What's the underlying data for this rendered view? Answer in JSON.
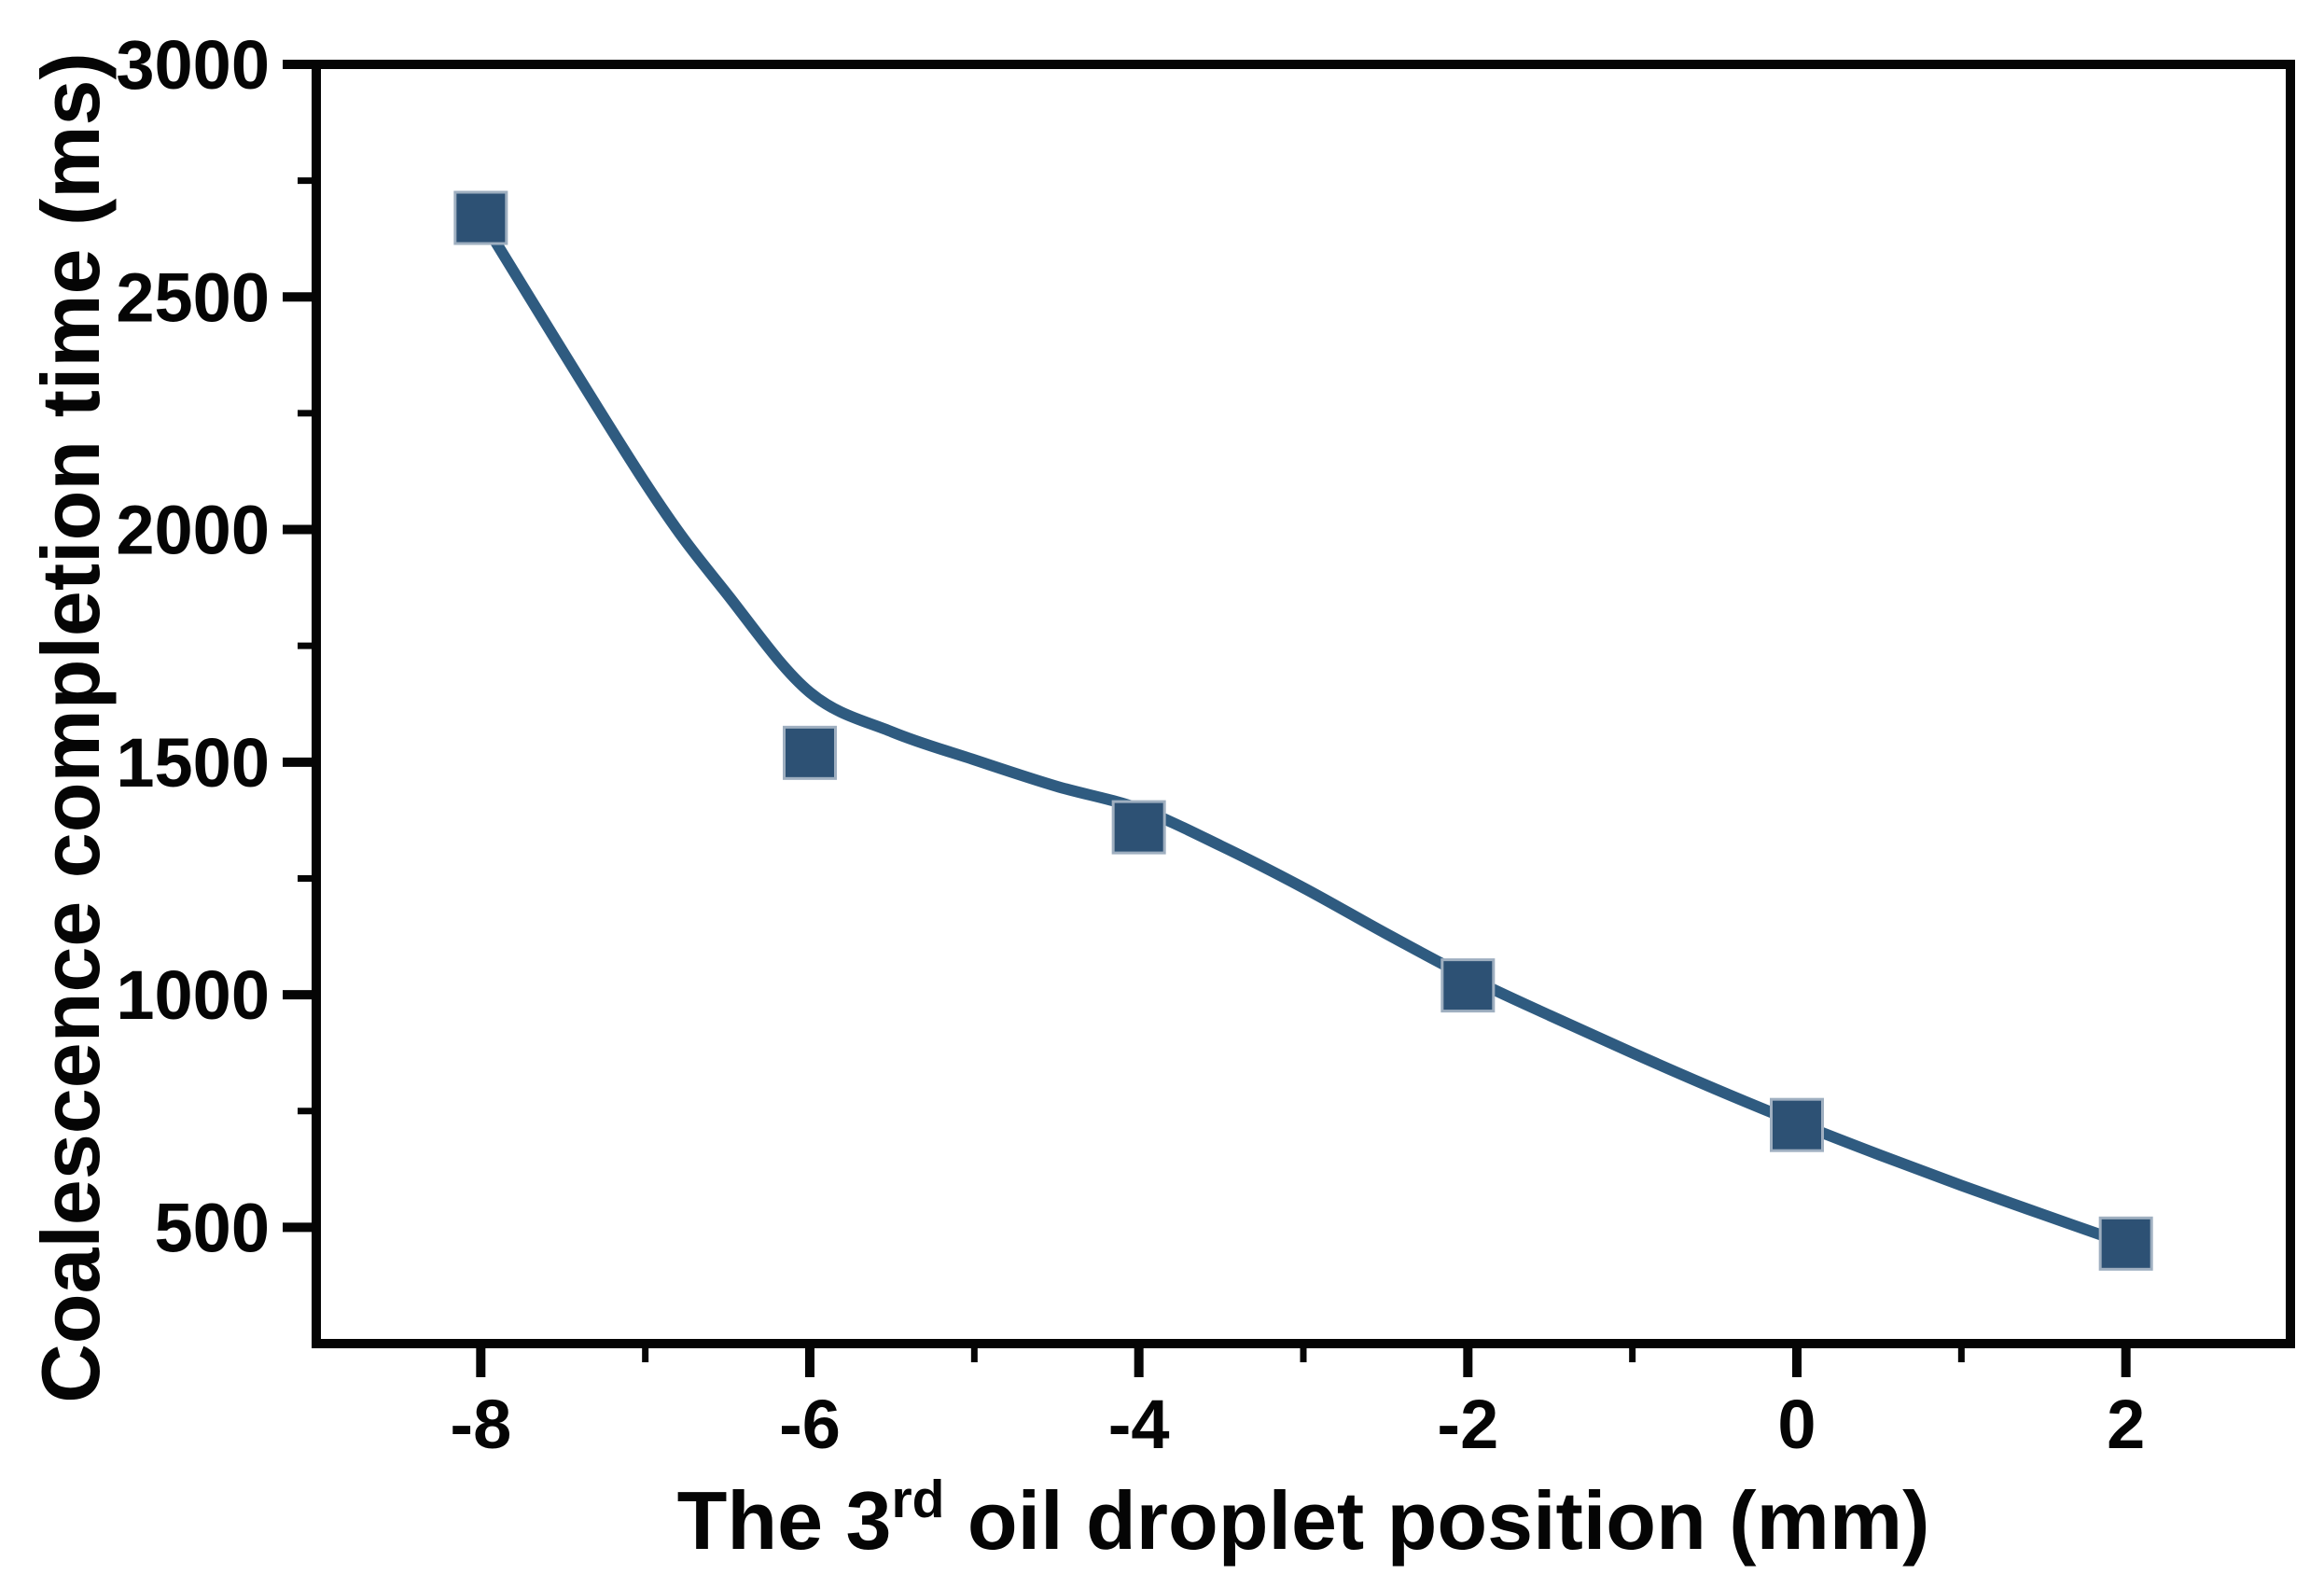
{
  "chart_data": {
    "type": "line",
    "title": "",
    "xlabel_parts": [
      {
        "text": "The 3",
        "superscript": false
      },
      {
        "text": "rd",
        "superscript": true
      },
      {
        "text": " oil droplet position (mm)",
        "superscript": false
      }
    ],
    "xlabel_plain": "The 3rd oil droplet position (mm)",
    "ylabel": "Coalescence completion time (ms)",
    "x": [
      -8,
      -6,
      -4,
      -2,
      0,
      2
    ],
    "y": [
      2670,
      1520,
      1360,
      1020,
      720,
      465
    ],
    "series_name": "coalescence-completion-time",
    "marker": "square",
    "xlim": [
      -9,
      3
    ],
    "ylim": [
      250,
      3000
    ],
    "x_major_ticks": [
      -8,
      -6,
      -4,
      -2,
      0,
      2
    ],
    "x_tick_labels": [
      "-8",
      "-6",
      "-4",
      "-2",
      "0",
      "2"
    ],
    "x_minor_ticks": [
      -7,
      -5,
      -3,
      -1,
      1
    ],
    "y_major_ticks": [
      500,
      1000,
      1500,
      2000,
      2500,
      3000
    ],
    "y_tick_labels": [
      "500",
      "1000",
      "1500",
      "2000",
      "2500",
      "3000"
    ],
    "y_minor_ticks": [
      750,
      1250,
      1750,
      2250,
      2750
    ],
    "grid": false,
    "legend": null,
    "fit_curve": [
      [
        -8.0,
        2670
      ],
      [
        -7.0,
        2100
      ],
      [
        -6.5,
        1860
      ],
      [
        -6.0,
        1650
      ],
      [
        -5.5,
        1565
      ],
      [
        -5.0,
        1505
      ],
      [
        -4.5,
        1448
      ],
      [
        -4.0,
        1400
      ],
      [
        -3.5,
        1320
      ],
      [
        -3.0,
        1230
      ],
      [
        -2.5,
        1132
      ],
      [
        -2.0,
        1038
      ],
      [
        -1.5,
        955
      ],
      [
        -1.0,
        875
      ],
      [
        -0.5,
        798
      ],
      [
        0.0,
        725
      ],
      [
        0.5,
        656
      ],
      [
        1.0,
        590
      ],
      [
        1.5,
        527
      ],
      [
        2.0,
        465
      ]
    ],
    "colors": {
      "line": "#2F5B80",
      "marker_fill": "#2D5174",
      "marker_edge": "#9FAFC0",
      "axis": "#050505",
      "text": "#050505",
      "background": "#FFFFFF"
    }
  }
}
